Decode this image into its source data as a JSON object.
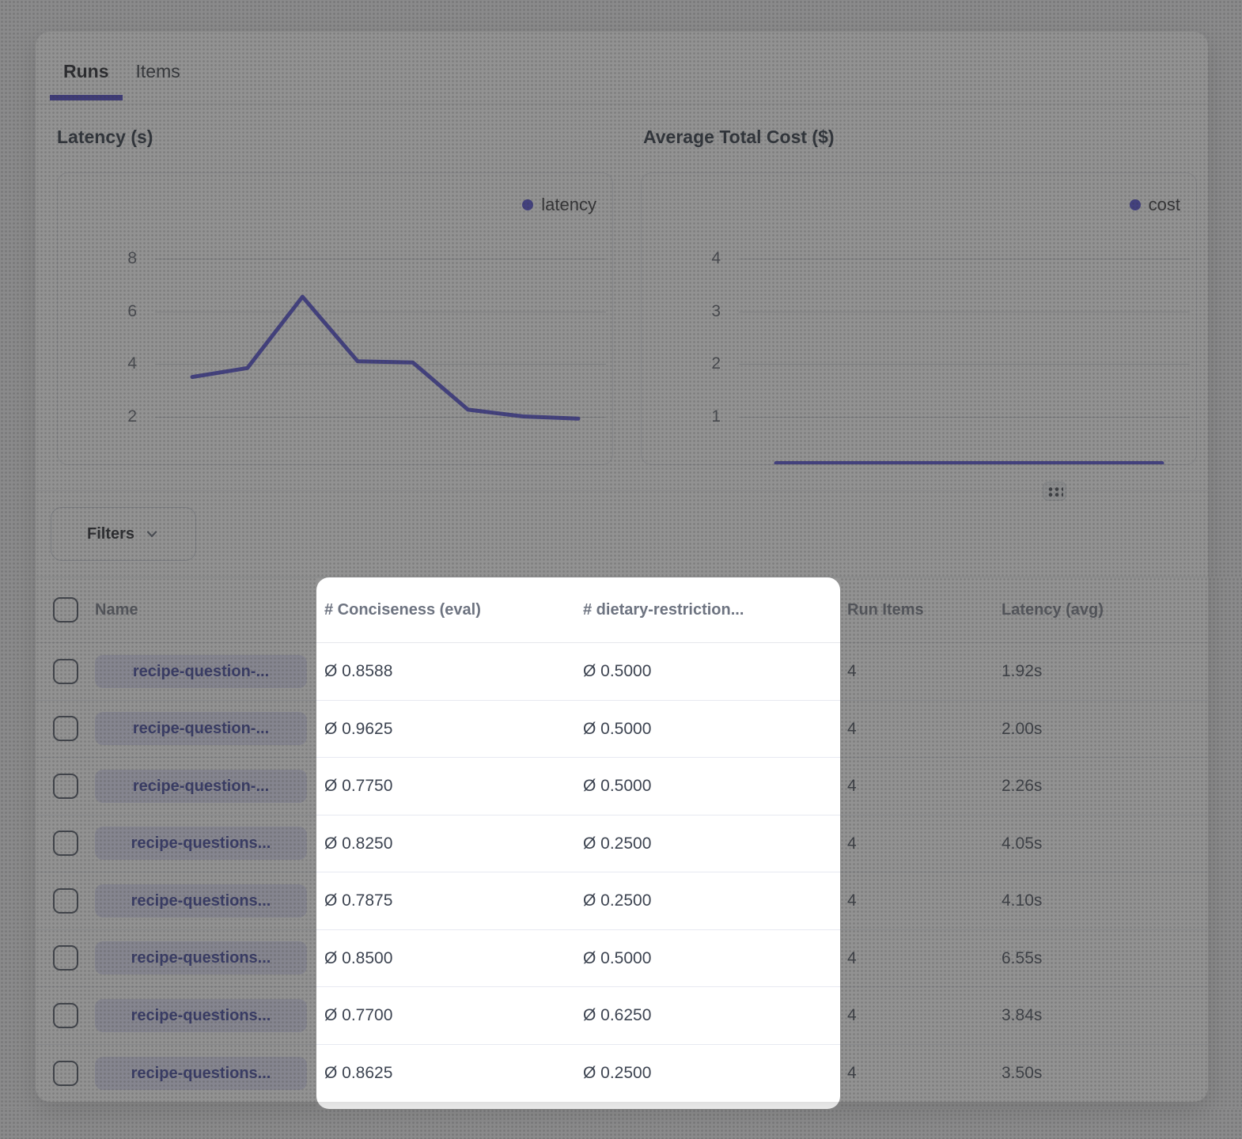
{
  "tabs": [
    {
      "label": "Runs",
      "active": true
    },
    {
      "label": "Items",
      "active": false
    }
  ],
  "chart_data": [
    {
      "type": "line",
      "title": "Latency (s)",
      "legend": "latency",
      "x": [
        1,
        2,
        3,
        4,
        5,
        6,
        7,
        8
      ],
      "values": [
        3.5,
        3.84,
        6.55,
        4.1,
        4.05,
        2.26,
        2.0,
        1.92
      ],
      "yticks": [
        8,
        6,
        4,
        2
      ],
      "ylim": [
        1,
        9
      ],
      "grid": true,
      "legend_position": "top-right",
      "line_color": "#4843d1"
    },
    {
      "type": "line",
      "title": "Average Total Cost ($)",
      "legend": "cost",
      "x": [
        1,
        2,
        3,
        4,
        5,
        6,
        7,
        8
      ],
      "values": [
        0.02,
        0.02,
        0.02,
        0.02,
        0.02,
        0.02,
        0.02,
        0.02
      ],
      "yticks": [
        4,
        3,
        2,
        1
      ],
      "ylim": [
        0,
        4.5
      ],
      "grid": true,
      "legend_position": "top-right",
      "line_color": "#4843d1"
    }
  ],
  "filters": {
    "label": "Filters"
  },
  "table": {
    "headers": [
      "Name",
      "# Conciseness (eval)",
      "# dietary-restriction...",
      "Run Items",
      "Latency (avg)"
    ],
    "rows": [
      {
        "name": "recipe-question-...",
        "conciseness": "Ø 0.8588",
        "dietary": "Ø 0.5000",
        "run_items": "4",
        "latency": "1.92s"
      },
      {
        "name": "recipe-question-...",
        "conciseness": "Ø 0.9625",
        "dietary": "Ø 0.5000",
        "run_items": "4",
        "latency": "2.00s"
      },
      {
        "name": "recipe-question-...",
        "conciseness": "Ø 0.7750",
        "dietary": "Ø 0.5000",
        "run_items": "4",
        "latency": "2.26s"
      },
      {
        "name": "recipe-questions...",
        "conciseness": "Ø 0.8250",
        "dietary": "Ø 0.2500",
        "run_items": "4",
        "latency": "4.05s"
      },
      {
        "name": "recipe-questions...",
        "conciseness": "Ø 0.7875",
        "dietary": "Ø 0.2500",
        "run_items": "4",
        "latency": "4.10s"
      },
      {
        "name": "recipe-questions...",
        "conciseness": "Ø 0.8500",
        "dietary": "Ø 0.5000",
        "run_items": "4",
        "latency": "6.55s"
      },
      {
        "name": "recipe-questions...",
        "conciseness": "Ø 0.7700",
        "dietary": "Ø 0.6250",
        "run_items": "4",
        "latency": "3.84s"
      },
      {
        "name": "recipe-questions...",
        "conciseness": "Ø 0.8625",
        "dietary": "Ø 0.2500",
        "run_items": "4",
        "latency": "3.50s"
      }
    ]
  },
  "colors": {
    "accent_indigo": "#4843d1",
    "tab_underline": "#4038c0",
    "pill_bg": "#e2e2f7",
    "pill_text": "#323897",
    "highlight_bg": "#ffffff",
    "dim_overlay": "rgba(64,64,64,0.57)"
  }
}
